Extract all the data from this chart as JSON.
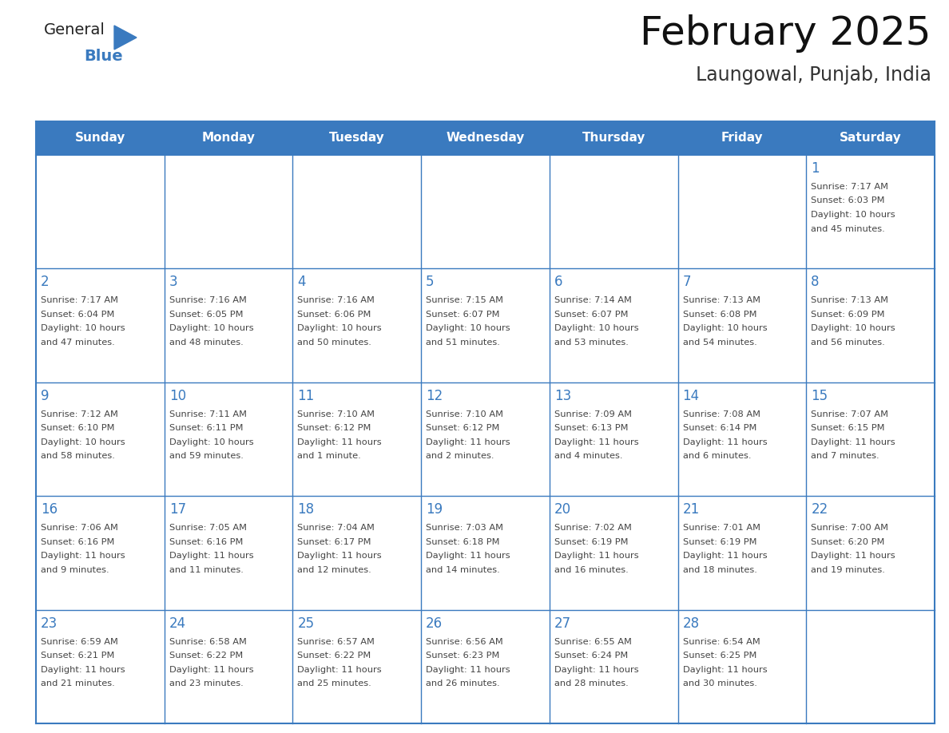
{
  "title": "February 2025",
  "subtitle": "Laungowal, Punjab, India",
  "header_bg": "#3a7abf",
  "header_text": "#ffffff",
  "cell_bg": "#ffffff",
  "day_number_color": "#3a7abf",
  "cell_text_color": "#444444",
  "days_of_week": [
    "Sunday",
    "Monday",
    "Tuesday",
    "Wednesday",
    "Thursday",
    "Friday",
    "Saturday"
  ],
  "weeks": [
    [
      {
        "day": "",
        "sunrise": "",
        "sunset": "",
        "daylight": ""
      },
      {
        "day": "",
        "sunrise": "",
        "sunset": "",
        "daylight": ""
      },
      {
        "day": "",
        "sunrise": "",
        "sunset": "",
        "daylight": ""
      },
      {
        "day": "",
        "sunrise": "",
        "sunset": "",
        "daylight": ""
      },
      {
        "day": "",
        "sunrise": "",
        "sunset": "",
        "daylight": ""
      },
      {
        "day": "",
        "sunrise": "",
        "sunset": "",
        "daylight": ""
      },
      {
        "day": "1",
        "sunrise": "7:17 AM",
        "sunset": "6:03 PM",
        "daylight": "10 hours\nand 45 minutes."
      }
    ],
    [
      {
        "day": "2",
        "sunrise": "7:17 AM",
        "sunset": "6:04 PM",
        "daylight": "10 hours\nand 47 minutes."
      },
      {
        "day": "3",
        "sunrise": "7:16 AM",
        "sunset": "6:05 PM",
        "daylight": "10 hours\nand 48 minutes."
      },
      {
        "day": "4",
        "sunrise": "7:16 AM",
        "sunset": "6:06 PM",
        "daylight": "10 hours\nand 50 minutes."
      },
      {
        "day": "5",
        "sunrise": "7:15 AM",
        "sunset": "6:07 PM",
        "daylight": "10 hours\nand 51 minutes."
      },
      {
        "day": "6",
        "sunrise": "7:14 AM",
        "sunset": "6:07 PM",
        "daylight": "10 hours\nand 53 minutes."
      },
      {
        "day": "7",
        "sunrise": "7:13 AM",
        "sunset": "6:08 PM",
        "daylight": "10 hours\nand 54 minutes."
      },
      {
        "day": "8",
        "sunrise": "7:13 AM",
        "sunset": "6:09 PM",
        "daylight": "10 hours\nand 56 minutes."
      }
    ],
    [
      {
        "day": "9",
        "sunrise": "7:12 AM",
        "sunset": "6:10 PM",
        "daylight": "10 hours\nand 58 minutes."
      },
      {
        "day": "10",
        "sunrise": "7:11 AM",
        "sunset": "6:11 PM",
        "daylight": "10 hours\nand 59 minutes."
      },
      {
        "day": "11",
        "sunrise": "7:10 AM",
        "sunset": "6:12 PM",
        "daylight": "11 hours\nand 1 minute."
      },
      {
        "day": "12",
        "sunrise": "7:10 AM",
        "sunset": "6:12 PM",
        "daylight": "11 hours\nand 2 minutes."
      },
      {
        "day": "13",
        "sunrise": "7:09 AM",
        "sunset": "6:13 PM",
        "daylight": "11 hours\nand 4 minutes."
      },
      {
        "day": "14",
        "sunrise": "7:08 AM",
        "sunset": "6:14 PM",
        "daylight": "11 hours\nand 6 minutes."
      },
      {
        "day": "15",
        "sunrise": "7:07 AM",
        "sunset": "6:15 PM",
        "daylight": "11 hours\nand 7 minutes."
      }
    ],
    [
      {
        "day": "16",
        "sunrise": "7:06 AM",
        "sunset": "6:16 PM",
        "daylight": "11 hours\nand 9 minutes."
      },
      {
        "day": "17",
        "sunrise": "7:05 AM",
        "sunset": "6:16 PM",
        "daylight": "11 hours\nand 11 minutes."
      },
      {
        "day": "18",
        "sunrise": "7:04 AM",
        "sunset": "6:17 PM",
        "daylight": "11 hours\nand 12 minutes."
      },
      {
        "day": "19",
        "sunrise": "7:03 AM",
        "sunset": "6:18 PM",
        "daylight": "11 hours\nand 14 minutes."
      },
      {
        "day": "20",
        "sunrise": "7:02 AM",
        "sunset": "6:19 PM",
        "daylight": "11 hours\nand 16 minutes."
      },
      {
        "day": "21",
        "sunrise": "7:01 AM",
        "sunset": "6:19 PM",
        "daylight": "11 hours\nand 18 minutes."
      },
      {
        "day": "22",
        "sunrise": "7:00 AM",
        "sunset": "6:20 PM",
        "daylight": "11 hours\nand 19 minutes."
      }
    ],
    [
      {
        "day": "23",
        "sunrise": "6:59 AM",
        "sunset": "6:21 PM",
        "daylight": "11 hours\nand 21 minutes."
      },
      {
        "day": "24",
        "sunrise": "6:58 AM",
        "sunset": "6:22 PM",
        "daylight": "11 hours\nand 23 minutes."
      },
      {
        "day": "25",
        "sunrise": "6:57 AM",
        "sunset": "6:22 PM",
        "daylight": "11 hours\nand 25 minutes."
      },
      {
        "day": "26",
        "sunrise": "6:56 AM",
        "sunset": "6:23 PM",
        "daylight": "11 hours\nand 26 minutes."
      },
      {
        "day": "27",
        "sunrise": "6:55 AM",
        "sunset": "6:24 PM",
        "daylight": "11 hours\nand 28 minutes."
      },
      {
        "day": "28",
        "sunrise": "6:54 AM",
        "sunset": "6:25 PM",
        "daylight": "11 hours\nand 30 minutes."
      },
      {
        "day": "",
        "sunrise": "",
        "sunset": "",
        "daylight": ""
      }
    ]
  ],
  "logo_general_color": "#222222",
  "logo_blue_color": "#3a7abf",
  "logo_triangle_color": "#3a7abf",
  "fig_width": 11.88,
  "fig_height": 9.18,
  "dpi": 100
}
